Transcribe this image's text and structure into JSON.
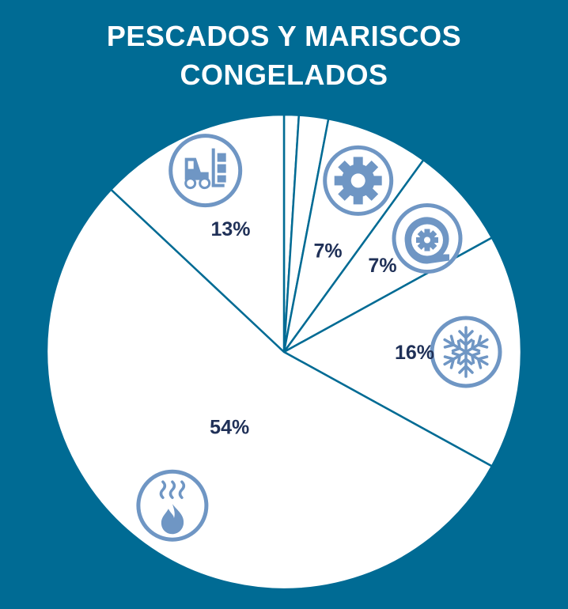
{
  "colors": {
    "background": "#006b94",
    "slice_fill": "#ffffff",
    "slice_border": "#006b94",
    "icon": "#6f96c4",
    "label": "#1f3057"
  },
  "chart_data": {
    "type": "pie",
    "title": "PESCADOS Y MARISCOS CONGELADOS",
    "title_lines": [
      "PESCADOS Y MARISCOS",
      "CONGELADOS"
    ],
    "start": "12 o'clock",
    "direction": "clockwise",
    "slices": [
      {
        "value": 1,
        "label": "",
        "icon": "none"
      },
      {
        "value": 2,
        "label": "",
        "icon": "none"
      },
      {
        "value": 7,
        "label": "7%",
        "icon": "gear-icon"
      },
      {
        "value": 7,
        "label": "7%",
        "icon": "motor-gear-icon"
      },
      {
        "value": 16,
        "label": "16%",
        "icon": "snowflake-icon"
      },
      {
        "value": 54,
        "label": "54%",
        "icon": "flame-heat-icon"
      },
      {
        "value": 13,
        "label": "13%",
        "icon": "forklift-icon"
      }
    ]
  }
}
